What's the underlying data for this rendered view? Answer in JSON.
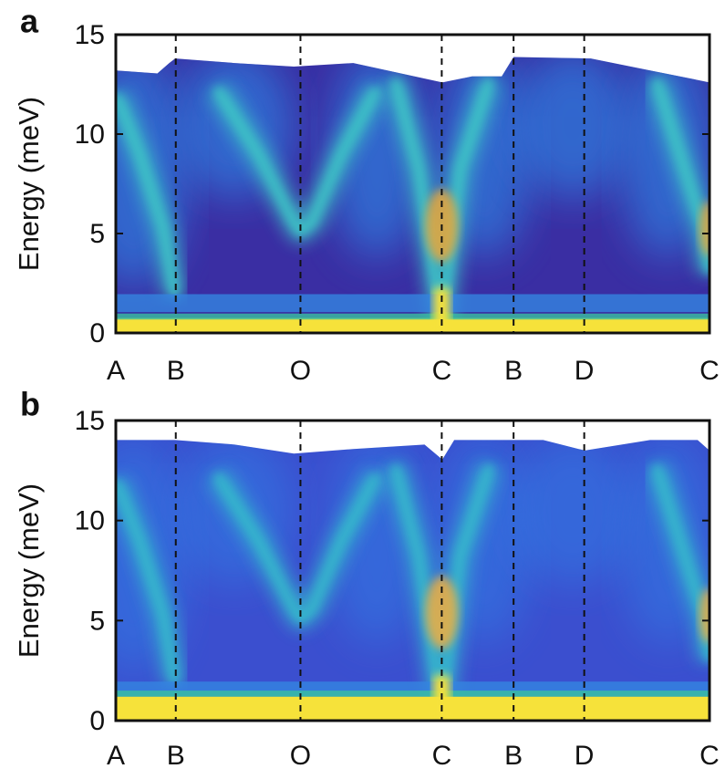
{
  "chart_data": [
    {
      "type": "heatmap",
      "panel_label": "a",
      "ylabel": "Energy (meV)",
      "ylim": [
        0,
        15
      ],
      "yticks": [
        0,
        5,
        10,
        15
      ],
      "categories": [
        "A",
        "B",
        "O",
        "C",
        "B",
        "D",
        "C"
      ]
    },
    {
      "type": "heatmap",
      "panel_label": "b",
      "ylabel": "Energy (meV)",
      "ylim": [
        0,
        15
      ],
      "yticks": [
        0,
        5,
        10,
        15
      ],
      "categories": [
        "A",
        "B",
        "O",
        "C",
        "B",
        "D",
        "C"
      ]
    }
  ]
}
